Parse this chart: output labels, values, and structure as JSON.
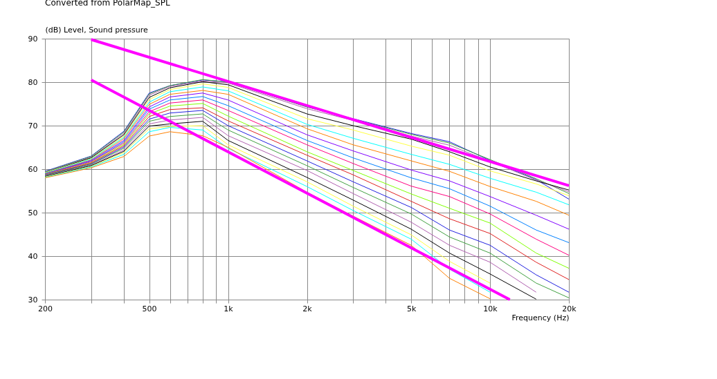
{
  "chart_data": {
    "type": "line",
    "title": "Converted from PolarMap_SPL",
    "ylabel": "(dB)  Level, Sound pressure",
    "xlabel": "Frequency  (Hz)",
    "log": "x",
    "grid": true,
    "legend": false,
    "x": [
      200,
      300,
      400,
      500,
      600,
      800,
      1000,
      2000,
      3000,
      5000,
      7000,
      10000,
      15000,
      20000
    ],
    "xlim": [
      200,
      20000
    ],
    "ylim": [
      30,
      90
    ],
    "yticks": [
      30,
      40,
      50,
      60,
      70,
      80,
      90
    ],
    "xticks": [
      200,
      {
        "value": 300,
        "label": null
      },
      {
        "value": 400,
        "label": null
      },
      500,
      {
        "value": 600,
        "label": null
      },
      {
        "value": 700,
        "label": null
      },
      {
        "value": 800,
        "label": null
      },
      {
        "value": 900,
        "label": null
      },
      {
        "value": 1000,
        "label": "1k"
      },
      {
        "value": 2000,
        "label": "2k"
      },
      {
        "value": 3000,
        "label": null
      },
      {
        "value": 4000,
        "label": null
      },
      {
        "value": 5000,
        "label": "5k"
      },
      {
        "value": 6000,
        "label": null
      },
      {
        "value": 7000,
        "label": null
      },
      {
        "value": 8000,
        "label": null
      },
      {
        "value": 9000,
        "label": null
      },
      {
        "value": 10000,
        "label": "10k"
      },
      {
        "value": 20000,
        "label": "20k"
      }
    ],
    "series": [
      {
        "color": "#2020e0",
        "values": [
          59.5,
          63.0,
          68.7,
          77.5,
          79.2,
          80.5,
          80.1,
          74.3,
          71.6,
          68.2,
          66.3,
          62.0,
          57.6,
          53.1
        ]
      },
      {
        "color": "#40a040",
        "values": [
          59.4,
          62.9,
          68.5,
          77.3,
          79.2,
          80.6,
          80.0,
          74.3,
          71.5,
          68.0,
          66.0,
          62.2,
          57.8,
          54.4
        ]
      },
      {
        "color": "#b060b0",
        "values": [
          59.3,
          62.7,
          68.2,
          77.0,
          79.0,
          80.3,
          79.8,
          73.9,
          71.2,
          67.6,
          65.5,
          61.8,
          57.5,
          54.8
        ]
      },
      {
        "color": "#000000",
        "values": [
          59.2,
          62.6,
          67.9,
          76.5,
          78.7,
          80.1,
          79.4,
          72.7,
          70.0,
          66.9,
          64.0,
          60.5,
          57.3,
          55.2
        ]
      },
      {
        "color": "#ffff40",
        "values": [
          59.2,
          62.4,
          67.6,
          76.0,
          78.3,
          79.6,
          78.8,
          71.6,
          69.0,
          65.3,
          63.2,
          59.6,
          56.6,
          53.9
        ]
      },
      {
        "color": "#00ffff",
        "values": [
          59.1,
          62.3,
          67.3,
          75.4,
          77.8,
          78.9,
          78.0,
          70.3,
          67.1,
          63.4,
          61.1,
          57.9,
          54.7,
          51.8
        ]
      },
      {
        "color": "#ff8000",
        "values": [
          59.0,
          62.1,
          67.0,
          74.9,
          77.2,
          78.1,
          77.2,
          69.3,
          65.6,
          61.9,
          59.5,
          56.0,
          52.6,
          49.4
        ]
      },
      {
        "color": "#8000ff",
        "values": [
          58.9,
          62.0,
          66.6,
          74.3,
          76.6,
          77.5,
          75.9,
          67.9,
          64.2,
          59.8,
          57.3,
          53.7,
          49.4,
          46.2
        ]
      },
      {
        "color": "#0080ff",
        "values": [
          58.9,
          61.8,
          66.3,
          73.8,
          75.9,
          76.7,
          74.6,
          66.6,
          62.6,
          58.0,
          55.5,
          51.5,
          46.0,
          43.1
        ]
      },
      {
        "color": "#ff0080",
        "values": [
          58.8,
          61.7,
          66.0,
          73.2,
          75.2,
          75.9,
          73.5,
          65.6,
          61.3,
          56.1,
          53.7,
          49.7,
          43.9,
          40.2
        ]
      },
      {
        "color": "#80ff00",
        "values": [
          58.7,
          61.5,
          65.7,
          72.7,
          74.5,
          75.1,
          72.2,
          64.0,
          59.7,
          54.3,
          51.0,
          47.6,
          40.7,
          37.2
        ]
      },
      {
        "color": "#e02020",
        "values": [
          58.6,
          61.4,
          65.4,
          72.1,
          73.7,
          74.1,
          71.1,
          63.2,
          58.7,
          52.6,
          48.6,
          45.2,
          38.6,
          34.6
        ]
      },
      {
        "color": "#2020e0",
        "values": [
          58.6,
          61.2,
          65.1,
          71.5,
          72.9,
          73.5,
          70.0,
          61.9,
          57.1,
          51.2,
          46.0,
          42.5,
          35.7,
          31.7
        ]
      },
      {
        "color": "#40a040",
        "values": [
          58.5,
          61.1,
          64.8,
          71.0,
          72.1,
          72.7,
          69.0,
          60.8,
          55.8,
          49.7,
          44.4,
          40.7,
          33.8,
          30.4
        ]
      },
      {
        "color": "#b060b0",
        "values": [
          58.4,
          60.9,
          64.4,
          70.4,
          71.3,
          71.9,
          67.7,
          59.7,
          54.4,
          47.8,
          42.5,
          38.6,
          31.7,
          null
        ]
      },
      {
        "color": "#000000",
        "values": [
          58.3,
          60.8,
          64.1,
          69.9,
          70.4,
          71.0,
          66.6,
          58.1,
          52.9,
          46.2,
          40.7,
          35.9,
          30.1,
          null
        ]
      },
      {
        "color": "#ffff40",
        "values": [
          58.2,
          60.6,
          63.8,
          69.3,
          69.8,
          70.0,
          65.6,
          57.1,
          51.5,
          44.9,
          38.8,
          33.8,
          null,
          null
        ]
      },
      {
        "color": "#00ffff",
        "values": [
          58.1,
          60.5,
          63.4,
          68.6,
          69.6,
          69.0,
          64.8,
          56.0,
          50.5,
          43.9,
          37.0,
          31.7,
          null,
          null
        ]
      },
      {
        "color": "#ff8000",
        "values": [
          58.0,
          60.3,
          62.9,
          67.6,
          68.6,
          67.7,
          65.0,
          54.7,
          49.2,
          42.5,
          34.9,
          30.2,
          null,
          null
        ]
      },
      {
        "type": "line",
        "color": "#ff00ff",
        "x": [
          300,
          20000
        ],
        "values": [
          89.8,
          56.2
        ]
      },
      {
        "type": "line",
        "color": "#ff00ff",
        "x": [
          300,
          11900
        ],
        "values": [
          80.5,
          30
        ]
      }
    ]
  }
}
